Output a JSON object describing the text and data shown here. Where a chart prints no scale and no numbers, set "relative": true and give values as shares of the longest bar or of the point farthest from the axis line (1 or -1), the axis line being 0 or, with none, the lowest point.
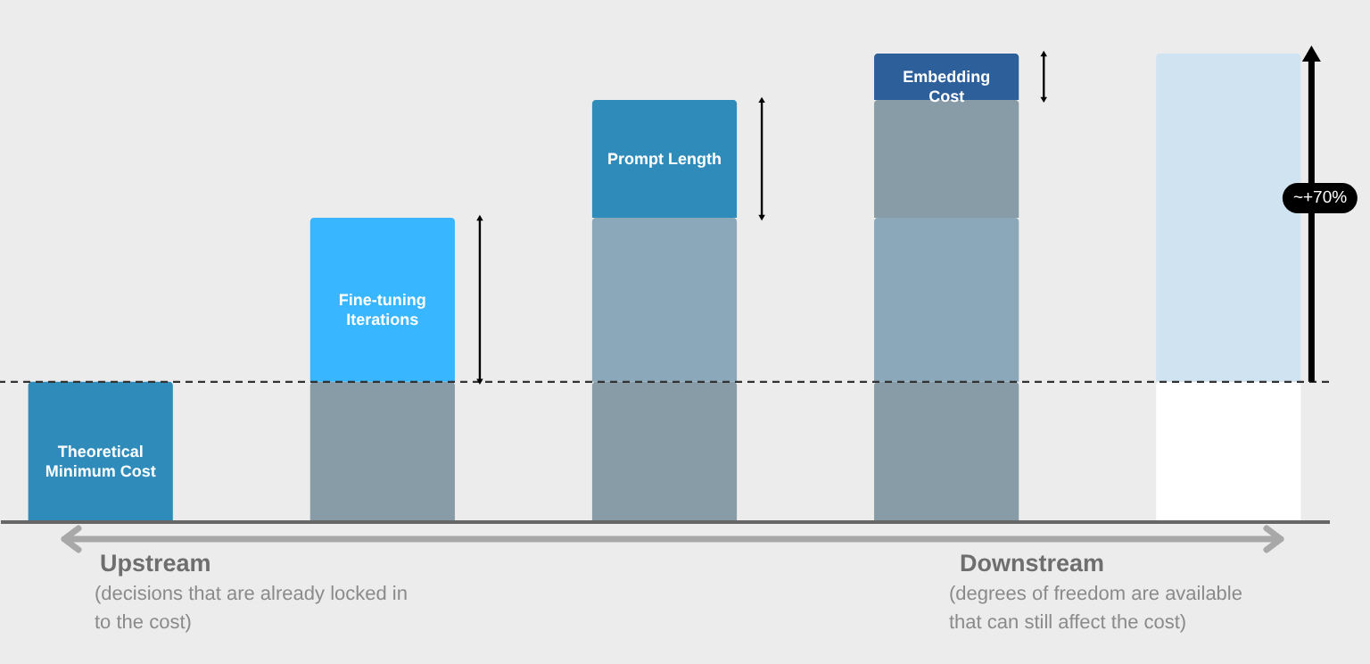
{
  "chart_data": {
    "type": "bar",
    "relative": true,
    "stacked": true,
    "categories": [
      null,
      null,
      null,
      null,
      null
    ],
    "series": [
      {
        "values": [
          0.298,
          0.298,
          0.298,
          0.298,
          0.298
        ],
        "colors": [
          "#2e8bba",
          "#879ca6",
          "#879ca6",
          "#879ca6",
          "#ffffff"
        ]
      },
      {
        "values": [
          null,
          0.351,
          0.351,
          0.351,
          0.702
        ],
        "colors": [
          null,
          "#38b6ff",
          "#8aa8b9",
          "#8aa8b9",
          "#d0e3f1"
        ]
      },
      {
        "values": [
          null,
          null,
          0.252,
          0.252,
          null
        ],
        "colors": [
          null,
          null,
          "#2e8bba",
          "#879ca6",
          null
        ]
      },
      {
        "values": [
          null,
          null,
          null,
          0.099,
          null
        ],
        "colors": [
          null,
          null,
          null,
          "#2d5f9a",
          null
        ]
      }
    ],
    "ref_lines": [
      {
        "axis": "y",
        "value": 0.298,
        "line_style": "dashed",
        "color": "#333333"
      }
    ],
    "annotations": [
      "Theoretical Minimum Cost",
      "Fine-tuning Iterations",
      "Prompt Length",
      "Embedding Cost",
      "~+70%",
      "Upstream",
      "(decisions that are already locked in to the cost)",
      "Downstream",
      "(degrees of freedom are available that can still affect the cost)"
    ]
  }
}
